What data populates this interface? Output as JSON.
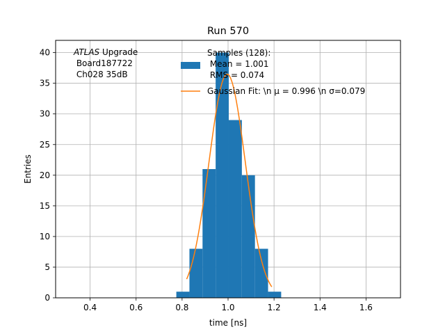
{
  "chart_data": {
    "type": "bar",
    "title": "Run 570",
    "xlabel": "time [ns]",
    "ylabel": "Entries",
    "xlim": [
      0.25,
      1.75
    ],
    "ylim": [
      0,
      42
    ],
    "xticks": [
      0.4,
      0.6,
      0.8,
      1.0,
      1.2,
      1.4,
      1.6
    ],
    "xtick_labels": [
      "0.4",
      "0.6",
      "0.8",
      "1.0",
      "1.2",
      "1.4",
      "1.6"
    ],
    "yticks": [
      0,
      5,
      10,
      15,
      20,
      25,
      30,
      35,
      40
    ],
    "ytick_labels": [
      "0",
      "5",
      "10",
      "15",
      "20",
      "25",
      "30",
      "35",
      "40"
    ],
    "grid": true,
    "legend_position": "top-right",
    "annotation": {
      "italic_prefix": "ATLAS",
      "line1_rest": " Upgrade",
      "line2": " Board187722",
      "line3": " Ch028 35dB"
    },
    "histogram": {
      "name_lines": [
        "Samples (128):",
        " Mean = 1.001",
        " RMS = 0.074"
      ],
      "color": "#1f77b4",
      "bin_edges": [
        0.775,
        0.832,
        0.889,
        0.946,
        1.003,
        1.06,
        1.117,
        1.174,
        1.231
      ],
      "counts": [
        1,
        8,
        21,
        40,
        29,
        20,
        8,
        1
      ]
    },
    "fit": {
      "name": "Gaussian Fit: \\n μ = 0.996 \\n σ=0.079",
      "color": "#ff7f0e",
      "amplitude": 36.5,
      "mu": 0.996,
      "sigma": 0.079,
      "x_range": [
        0.82,
        1.19
      ]
    }
  }
}
